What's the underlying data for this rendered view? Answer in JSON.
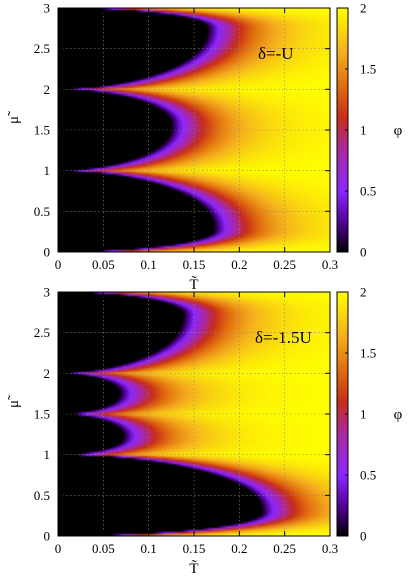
{
  "chart_data": [
    {
      "type": "heatmap",
      "annotation": "δ=-U",
      "xlabel": "T̃",
      "ylabel": "μ̃",
      "colorbar_label": "φ",
      "xlim": [
        0,
        0.3
      ],
      "ylim": [
        0,
        3
      ],
      "zlim": [
        0,
        2
      ],
      "x_ticks": [
        "0",
        "0.05",
        "0.1",
        "0.15",
        "0.2",
        "0.25",
        "0.3"
      ],
      "y_ticks": [
        "0",
        "0.5",
        "1",
        "1.5",
        "2",
        "2.5",
        "3"
      ],
      "cb_ticks": [
        "0",
        "0.5",
        "1",
        "1.5",
        "2"
      ],
      "grid": true,
      "lobes": [
        {
          "mu_low": 0,
          "mu_high": 1,
          "tip_T": 0.172,
          "tip_mu": 0.28
        },
        {
          "mu_low": 1,
          "mu_high": 2,
          "tip_T": 0.125,
          "tip_mu": 1.55
        },
        {
          "mu_low": 2,
          "mu_high": 3,
          "tip_T": 0.165,
          "tip_mu": 2.75
        }
      ]
    },
    {
      "type": "heatmap",
      "annotation": "δ=-1.5U",
      "xlabel": "T̃",
      "ylabel": "μ̃",
      "colorbar_label": "φ",
      "xlim": [
        0,
        0.3
      ],
      "ylim": [
        0,
        3
      ],
      "zlim": [
        0,
        2
      ],
      "x_ticks": [
        "0",
        "0.05",
        "0.1",
        "0.15",
        "0.2",
        "0.25",
        "0.3"
      ],
      "y_ticks": [
        "0",
        "0.5",
        "1",
        "1.5",
        "2",
        "2.5",
        "3"
      ],
      "cb_ticks": [
        "0",
        "0.5",
        "1",
        "1.5",
        "2"
      ],
      "grid": true,
      "lobes": [
        {
          "mu_low": 0,
          "mu_high": 1,
          "tip_T": 0.225,
          "tip_mu": 0.3
        },
        {
          "mu_low": 1,
          "mu_high": 1.5,
          "tip_T": 0.072,
          "tip_mu": 1.22
        },
        {
          "mu_low": 1.5,
          "mu_high": 2,
          "tip_T": 0.068,
          "tip_mu": 1.75
        },
        {
          "mu_low": 2,
          "mu_high": 3,
          "tip_T": 0.138,
          "tip_mu": 2.72
        }
      ]
    }
  ]
}
